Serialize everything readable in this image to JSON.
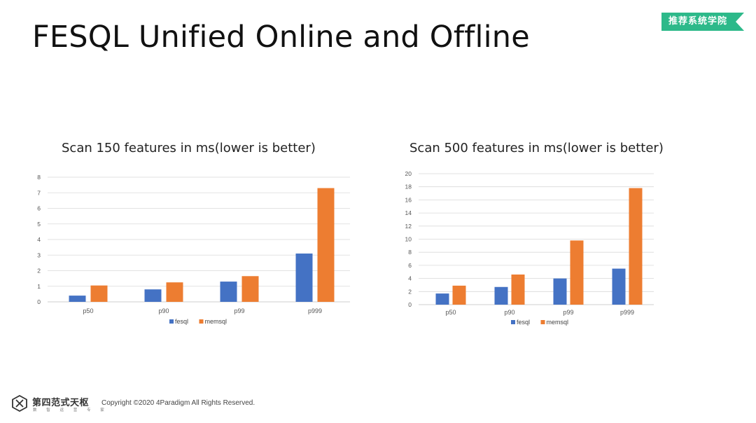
{
  "slide": {
    "title": "FESQL Unified Online and Offline",
    "badge": "推荐系统学院",
    "footer": {
      "logo_name": "第四范式天枢",
      "logo_sub": "数 智 运 营 专 家",
      "copyright": "Copyright ©2020 4Paradigm All Rights Reserved."
    }
  },
  "colors": {
    "fesql": "#4472C4",
    "memsql": "#ED7D31",
    "badge": "#2DB98A",
    "grid": "#D9D9D9"
  },
  "chart_data": [
    {
      "type": "bar",
      "title": "Scan 150 features in ms(lower is better)",
      "categories": [
        "p50",
        "p90",
        "p99",
        "p999"
      ],
      "series": [
        {
          "name": "fesql",
          "values": [
            0.4,
            0.8,
            1.3,
            3.1
          ]
        },
        {
          "name": "memsql",
          "values": [
            1.05,
            1.25,
            1.65,
            7.3
          ]
        }
      ],
      "ylim": [
        0,
        8
      ],
      "yticks": [
        0,
        1,
        2,
        3,
        4,
        5,
        6,
        7,
        8
      ],
      "grid": true,
      "legend": "bottom"
    },
    {
      "type": "bar",
      "title": "Scan 500 features in ms(lower is better)",
      "categories": [
        "p50",
        "p90",
        "p99",
        "p999"
      ],
      "series": [
        {
          "name": "fesql",
          "values": [
            1.7,
            2.7,
            4.0,
            5.5
          ]
        },
        {
          "name": "memsql",
          "values": [
            2.9,
            4.6,
            9.8,
            17.8
          ]
        }
      ],
      "ylim": [
        0,
        20
      ],
      "yticks": [
        0,
        2,
        4,
        6,
        8,
        10,
        12,
        14,
        16,
        18,
        20
      ],
      "grid": true,
      "legend": "bottom"
    }
  ]
}
